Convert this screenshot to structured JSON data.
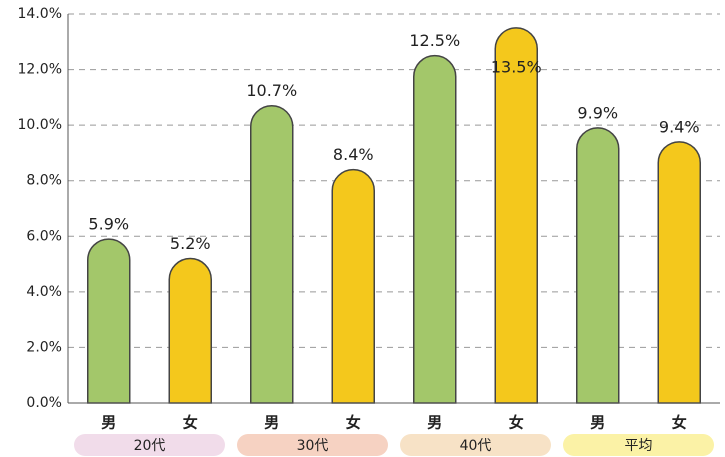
{
  "chart_data": {
    "type": "bar",
    "categories": [
      "男",
      "女",
      "男",
      "女",
      "男",
      "女",
      "男",
      "女"
    ],
    "category_colors": [
      "#2a8fd0",
      "#e0788a",
      "#2a8fd0",
      "#e0788a",
      "#2a8fd0",
      "#e0788a",
      "#2a8fd0",
      "#e0788a"
    ],
    "groups": [
      "20代",
      "30代",
      "40代",
      "平均"
    ],
    "group_colors": [
      "#f1dcea",
      "#f6d2c2",
      "#f7e2c6",
      "#fbf2a6"
    ],
    "values": [
      5.9,
      5.2,
      10.7,
      8.4,
      12.5,
      13.5,
      9.9,
      9.4
    ],
    "value_labels": [
      "5.9%",
      "5.2%",
      "10.7%",
      "8.4%",
      "12.5%",
      "13.5%",
      "9.9%",
      "9.4%"
    ],
    "colors": [
      "#a3c76a",
      "#f4c81c",
      "#a3c76a",
      "#f4c81c",
      "#a3c76a",
      "#f4c81c",
      "#a3c76a",
      "#f4c81c"
    ],
    "ylim": [
      0,
      14
    ],
    "yticks": [
      {
        "value": 0,
        "label": "0.0%"
      },
      {
        "value": 2,
        "label": "2.0%"
      },
      {
        "value": 4,
        "label": "4.0%"
      },
      {
        "value": 6,
        "label": "6.0%"
      },
      {
        "value": 8,
        "label": "8.0%"
      },
      {
        "value": 10,
        "label": "10.0%"
      },
      {
        "value": 12,
        "label": "12.0%"
      },
      {
        "value": 14,
        "label": "14.0%"
      }
    ],
    "grid": true
  }
}
